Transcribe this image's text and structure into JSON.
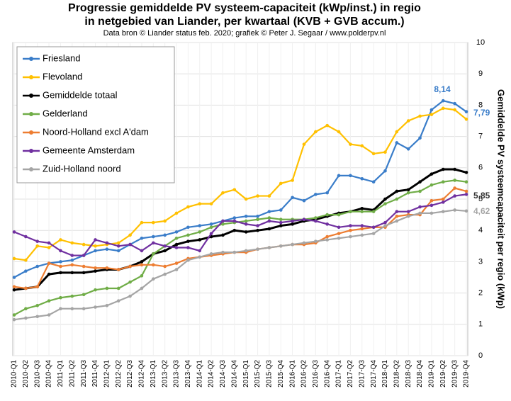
{
  "chart_data": {
    "type": "line",
    "title_lines": [
      "Progressie gemiddelde PV systeem-capaciteit (kWp/inst.) in regio",
      "in netgebied van Liander, per kwartaal (KVB + GVB accum.)"
    ],
    "subtitle": "Data bron © Liander status feb. 2020; grafiek © Peter J. Segaar / www.polderpv.nl",
    "y_label": "Gemiddelde PV systeemcapaciteit per regio (kWp)",
    "categories": [
      "2010-Q1",
      "2010-Q2",
      "2010-Q3",
      "2010-Q4",
      "2011-Q1",
      "2011-Q2",
      "2011-Q3",
      "2011-Q4",
      "2012-Q1",
      "2012-Q2",
      "2012-Q3",
      "2012-Q4",
      "2013-Q1",
      "2013-Q2",
      "2013-Q3",
      "2013-Q4",
      "2014-Q1",
      "2014-Q2",
      "2014-Q3",
      "2014-Q4",
      "2015-Q1",
      "2015-Q2",
      "2015-Q3",
      "2015-Q4",
      "2016-Q1",
      "2016-Q2",
      "2016-Q3",
      "2016-Q4",
      "2017-Q1",
      "2017-Q2",
      "2017-Q3",
      "2017-Q4",
      "2018-Q1",
      "2018-Q2",
      "2018-Q3",
      "2018-Q4",
      "2019-Q1",
      "2019-Q2",
      "2019-Q3",
      "2019-Q4"
    ],
    "series": [
      {
        "name": "Friesland",
        "color": "#3a7dc9",
        "values": [
          2.5,
          2.7,
          2.85,
          2.95,
          3.0,
          3.05,
          3.2,
          3.35,
          3.4,
          3.35,
          3.55,
          3.75,
          3.8,
          3.85,
          3.95,
          4.1,
          4.15,
          4.2,
          4.3,
          4.4,
          4.45,
          4.45,
          4.6,
          4.65,
          5.05,
          4.95,
          5.15,
          5.2,
          5.75,
          5.75,
          5.65,
          5.55,
          5.9,
          6.8,
          6.6,
          6.95,
          7.85,
          8.14,
          8.05,
          7.79
        ]
      },
      {
        "name": "Flevoland",
        "color": "#ffc000",
        "values": [
          3.1,
          3.05,
          3.5,
          3.45,
          3.7,
          3.6,
          3.55,
          3.5,
          3.55,
          3.6,
          3.85,
          4.25,
          4.25,
          4.3,
          4.55,
          4.75,
          4.85,
          4.85,
          5.2,
          5.3,
          5.0,
          5.1,
          5.1,
          5.5,
          5.6,
          6.75,
          7.15,
          7.35,
          7.15,
          6.75,
          6.7,
          6.45,
          6.5,
          7.15,
          7.5,
          7.65,
          7.7,
          7.9,
          7.85,
          7.55
        ]
      },
      {
        "name": "Gemiddelde totaal",
        "color": "#000000",
        "values": [
          2.1,
          2.15,
          2.2,
          2.6,
          2.65,
          2.65,
          2.65,
          2.7,
          2.75,
          2.75,
          2.85,
          3.0,
          3.25,
          3.35,
          3.55,
          3.65,
          3.7,
          3.8,
          3.85,
          4.0,
          3.95,
          4.0,
          4.05,
          4.15,
          4.2,
          4.3,
          4.35,
          4.45,
          4.55,
          4.6,
          4.7,
          4.65,
          5.0,
          5.25,
          5.3,
          5.55,
          5.8,
          5.95,
          5.95,
          5.85
        ]
      },
      {
        "name": "Gelderland",
        "color": "#70ad47",
        "values": [
          1.3,
          1.5,
          1.6,
          1.75,
          1.85,
          1.9,
          1.95,
          2.1,
          2.15,
          2.15,
          2.35,
          2.55,
          3.25,
          3.5,
          3.75,
          3.85,
          3.95,
          4.1,
          4.2,
          4.25,
          4.3,
          4.35,
          4.4,
          4.35,
          4.35,
          4.35,
          4.4,
          4.5,
          4.5,
          4.6,
          4.6,
          4.6,
          4.85,
          5.0,
          5.2,
          5.25,
          5.45,
          5.55,
          5.6,
          5.55
        ]
      },
      {
        "name": "Noord-Holland excl A'dam",
        "color": "#ed7d31",
        "values": [
          2.2,
          2.15,
          2.2,
          2.95,
          2.85,
          2.9,
          2.85,
          2.8,
          2.8,
          2.75,
          2.85,
          2.9,
          2.9,
          2.85,
          2.95,
          3.1,
          3.15,
          3.2,
          3.25,
          3.3,
          3.3,
          3.4,
          3.45,
          3.5,
          3.55,
          3.55,
          3.6,
          3.8,
          3.9,
          4.0,
          4.05,
          4.1,
          4.1,
          4.45,
          4.5,
          4.5,
          4.95,
          5.0,
          5.35,
          5.25
        ]
      },
      {
        "name": "Gemeente Amsterdam",
        "color": "#7030a0",
        "values": [
          3.95,
          3.8,
          3.65,
          3.6,
          3.35,
          3.2,
          3.2,
          3.7,
          3.6,
          3.5,
          3.55,
          3.35,
          3.6,
          3.5,
          3.45,
          3.45,
          3.35,
          3.9,
          4.3,
          4.3,
          4.2,
          4.15,
          4.3,
          4.25,
          4.3,
          4.35,
          4.3,
          4.2,
          4.1,
          4.15,
          4.15,
          4.1,
          4.25,
          4.6,
          4.6,
          4.75,
          4.8,
          4.9,
          5.1,
          5.15
        ]
      },
      {
        "name": "Zuid-Holland noord",
        "color": "#a5a5a5",
        "values": [
          1.15,
          1.2,
          1.25,
          1.3,
          1.5,
          1.5,
          1.5,
          1.55,
          1.6,
          1.75,
          1.9,
          2.15,
          2.45,
          2.6,
          2.75,
          3.05,
          3.15,
          3.25,
          3.3,
          3.3,
          3.35,
          3.4,
          3.45,
          3.5,
          3.55,
          3.6,
          3.65,
          3.7,
          3.75,
          3.8,
          3.85,
          3.9,
          4.15,
          4.3,
          4.45,
          4.55,
          4.55,
          4.6,
          4.65,
          4.62
        ]
      }
    ],
    "annotations": [
      {
        "text": "8,14",
        "color": "#3a7dc9"
      },
      {
        "text": "7,79",
        "color": "#3a7dc9"
      },
      {
        "text": "5,85",
        "color": "#333333"
      },
      {
        "text": "4,62",
        "color": "#a5a5a5"
      }
    ],
    "ylim": [
      0,
      10
    ],
    "yticks": [
      0,
      1,
      2,
      3,
      4,
      5,
      6,
      7,
      8,
      9,
      10
    ],
    "grid": true,
    "legend": "upper left"
  }
}
